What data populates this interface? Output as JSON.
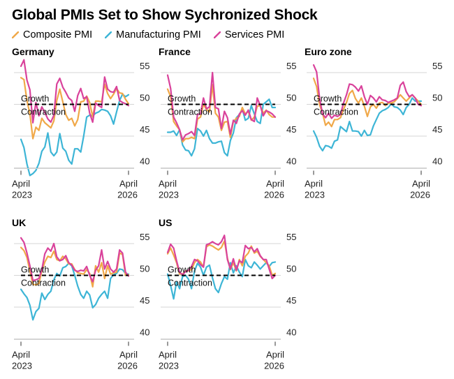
{
  "title": "Global PMIs Set to Show Sychronized Shock",
  "legend": [
    {
      "name": "Composite PMI",
      "color": "#f0a848"
    },
    {
      "name": "Manufacturing PMI",
      "color": "#3db5d6"
    },
    {
      "name": "Services PMI",
      "color": "#d9429b"
    }
  ],
  "chart_data": [
    {
      "type": "line",
      "title": "Germany",
      "x_start": "April 2023",
      "x_end": "April 2026",
      "x_ticks": [
        {
          "line1": "April",
          "line2": "2023"
        },
        {
          "line1": "April",
          "line2": "2026"
        }
      ],
      "y_ticks": [
        40,
        45,
        50,
        55
      ],
      "ylim": [
        39,
        57
      ],
      "reference_line": {
        "value": 50,
        "label_above": "Growth",
        "label_below": "Contraction"
      },
      "series": [
        {
          "name": "Composite PMI",
          "values": [
            54.2,
            53.9,
            50.6,
            48.5,
            44.6,
            46.4,
            45.9,
            47.8,
            47.1,
            46.7,
            46.3,
            47.4,
            50.6,
            52.4,
            50.4,
            48.4,
            47.5,
            47.8,
            46.6,
            47.6,
            50.4,
            50.5,
            51.3,
            50.3,
            48.0,
            50.5,
            50.5,
            50.4,
            53.2,
            51.7,
            50.9,
            51.6,
            52.5,
            51.8,
            51.7,
            50.8,
            50.1
          ]
        },
        {
          "name": "Manufacturing PMI",
          "values": [
            44.5,
            43.2,
            40.6,
            38.8,
            39.1,
            39.6,
            40.7,
            42.6,
            43.3,
            45.5,
            42.5,
            41.9,
            42.5,
            45.4,
            43.1,
            42.6,
            41.2,
            40.6,
            43.0,
            43.0,
            42.5,
            45.0,
            48.0,
            48.3,
            48.2,
            48.6,
            48.8,
            49.2,
            49.1,
            48.9,
            48.2,
            46.9,
            48.8,
            50.6,
            51.6,
            51.2,
            51.5
          ]
        },
        {
          "name": "Services PMI",
          "values": [
            56.0,
            57.0,
            53.8,
            52.3,
            47.1,
            50.3,
            48.2,
            49.6,
            48.7,
            47.7,
            47.2,
            48.3,
            53.2,
            54.1,
            52.7,
            51.9,
            51.0,
            50.6,
            48.9,
            51.4,
            52.5,
            50.9,
            51.2,
            48.6,
            47.2,
            50.2,
            49.8,
            49.5,
            54.3,
            52.4,
            52.0,
            51.9,
            52.8,
            50.6,
            50.3,
            50.1,
            49.8
          ]
        }
      ]
    },
    {
      "type": "line",
      "title": "France",
      "x_start": "April 2023",
      "x_end": "April 2026",
      "x_ticks": [
        {
          "line1": "April",
          "line2": "2023"
        },
        {
          "line1": "April",
          "line2": "2026"
        }
      ],
      "y_ticks": [
        40,
        45,
        50,
        55
      ],
      "ylim": [
        39,
        57
      ],
      "reference_line": {
        "value": 50,
        "label_above": "Growth",
        "label_below": "Contraction"
      },
      "series": [
        {
          "name": "Composite PMI",
          "values": [
            52.4,
            51.2,
            47.3,
            46.6,
            46.0,
            44.1,
            44.6,
            44.6,
            44.8,
            44.6,
            47.7,
            48.0,
            50.0,
            49.2,
            48.8,
            53.1,
            48.6,
            48.0,
            45.9,
            47.2,
            47.3,
            44.8,
            47.3,
            47.8,
            48.1,
            49.5,
            48.5,
            48.9,
            47.5,
            48.0,
            49.7,
            49.8,
            48.6,
            49.1,
            48.4,
            48.0,
            48.0
          ]
        },
        {
          "name": "Manufacturing PMI",
          "values": [
            45.6,
            45.6,
            45.8,
            45.1,
            46.0,
            43.6,
            42.8,
            42.7,
            41.9,
            43.0,
            46.2,
            45.8,
            45.0,
            45.9,
            44.6,
            43.9,
            43.9,
            44.1,
            44.2,
            42.4,
            41.9,
            44.3,
            45.5,
            47.9,
            48.4,
            49.3,
            47.5,
            47.8,
            49.8,
            48.5,
            47.3,
            47.0,
            50.0,
            50.4,
            50.8,
            49.5,
            49.5
          ]
        },
        {
          "name": "Services PMI",
          "values": [
            54.6,
            52.5,
            48.0,
            47.1,
            46.0,
            44.4,
            45.2,
            45.4,
            45.7,
            45.1,
            48.4,
            48.5,
            51.0,
            49.3,
            49.6,
            55.0,
            49.5,
            49.3,
            46.2,
            48.9,
            47.9,
            45.3,
            47.5,
            47.0,
            48.5,
            49.0,
            48.3,
            49.1,
            47.6,
            47.3,
            51.0,
            49.8,
            48.2,
            49.0,
            48.8,
            48.5,
            48.0
          ]
        }
      ]
    },
    {
      "type": "line",
      "title": "Euro zone",
      "x_start": "April 2023",
      "x_end": "April 2026",
      "x_ticks": [
        {
          "line1": "April",
          "line2": "2023"
        },
        {
          "line1": "April",
          "line2": "2026"
        }
      ],
      "y_ticks": [
        40,
        45,
        50,
        55
      ],
      "ylim": [
        39,
        57
      ],
      "reference_line": {
        "value": 50,
        "label_above": "Growth",
        "label_below": "Contraction"
      },
      "series": [
        {
          "name": "Composite PMI",
          "values": [
            54.1,
            52.8,
            49.9,
            48.6,
            46.7,
            47.2,
            46.5,
            47.6,
            47.6,
            47.9,
            49.2,
            50.3,
            51.7,
            52.2,
            50.9,
            50.2,
            51.0,
            49.7,
            48.1,
            49.6,
            50.0,
            49.4,
            50.2,
            50.3,
            49.8,
            50.2,
            50.2,
            50.4,
            50.9,
            51.5,
            51.0,
            50.5,
            51.0,
            51.5,
            51.0,
            50.5,
            50.0
          ]
        },
        {
          "name": "Manufacturing PMI",
          "values": [
            45.8,
            44.8,
            43.4,
            42.7,
            43.5,
            43.4,
            43.1,
            44.2,
            44.4,
            46.5,
            46.1,
            45.7,
            47.3,
            45.8,
            45.8,
            45.7,
            45.0,
            45.9,
            45.1,
            45.2,
            46.6,
            47.6,
            48.6,
            49.0,
            49.2,
            49.5,
            50.1,
            49.6,
            49.5,
            49.1,
            48.4,
            49.5,
            50.0,
            51.0,
            50.5,
            50.5,
            50.5
          ]
        },
        {
          "name": "Services PMI",
          "values": [
            56.2,
            55.1,
            50.9,
            48.5,
            47.9,
            48.6,
            47.8,
            48.3,
            48.1,
            48.4,
            50.2,
            51.5,
            53.2,
            53.1,
            52.7,
            52.1,
            52.9,
            51.2,
            50.0,
            51.4,
            51.0,
            50.4,
            51.2,
            50.7,
            50.6,
            50.3,
            50.5,
            50.7,
            51.0,
            53.0,
            53.5,
            52.0,
            51.2,
            51.5,
            51.0,
            50.0,
            49.8
          ]
        }
      ]
    },
    {
      "type": "line",
      "title": "UK",
      "x_start": "April 2023",
      "x_end": "April 2026",
      "x_ticks": [
        {
          "line1": "April",
          "line2": "2023"
        },
        {
          "line1": "April",
          "line2": "2026"
        }
      ],
      "y_ticks": [
        40,
        45,
        50,
        55
      ],
      "ylim": [
        39,
        57
      ],
      "reference_line": {
        "value": 50,
        "label_above": "Growth",
        "label_below": "Contraction"
      },
      "series": [
        {
          "name": "Composite PMI",
          "values": [
            54.4,
            53.9,
            52.8,
            50.7,
            48.6,
            48.5,
            48.7,
            50.7,
            52.1,
            53.0,
            52.8,
            53.8,
            52.5,
            52.3,
            53.0,
            52.6,
            51.8,
            51.8,
            50.9,
            50.4,
            50.3,
            50.2,
            50.9,
            50.3,
            48.2,
            51.5,
            50.5,
            52.0,
            49.5,
            51.5,
            50.2,
            50.4,
            50.5,
            53.5,
            53.3,
            50.0,
            50.1
          ]
        },
        {
          "name": "Manufacturing PMI",
          "values": [
            47.8,
            47.1,
            46.5,
            45.3,
            43.0,
            44.3,
            44.8,
            47.2,
            46.2,
            47.0,
            47.5,
            49.3,
            50.3,
            49.9,
            51.2,
            51.4,
            51.9,
            51.5,
            50.0,
            48.3,
            47.0,
            46.4,
            47.5,
            46.9,
            44.9,
            45.4,
            46.4,
            47.0,
            47.5,
            46.4,
            49.5,
            50.1,
            50.3,
            51.0,
            50.9,
            50.3,
            50.2
          ]
        },
        {
          "name": "Services PMI",
          "values": [
            55.9,
            55.2,
            53.5,
            51.5,
            49.2,
            49.3,
            49.5,
            50.9,
            53.4,
            54.3,
            53.8,
            55.0,
            52.9,
            52.3,
            52.5,
            53.1,
            52.0,
            51.6,
            50.8,
            50.6,
            50.8,
            50.7,
            51.4,
            50.0,
            49.0,
            50.8,
            51.5,
            54.0,
            51.0,
            52.2,
            51.0,
            50.5,
            51.0,
            54.0,
            53.5,
            50.5,
            49.9
          ]
        }
      ]
    },
    {
      "type": "line",
      "title": "US",
      "x_start": "April 2023",
      "x_end": "April 2026",
      "x_ticks": [
        {
          "line1": "April",
          "line2": "2023"
        },
        {
          "line1": "April",
          "line2": "2026"
        }
      ],
      "y_ticks": [
        40,
        45,
        50,
        55
      ],
      "ylim": [
        39,
        57
      ],
      "reference_line": {
        "value": 50,
        "label_above": "Growth",
        "label_below": "Contraction"
      },
      "series": [
        {
          "name": "Composite PMI",
          "values": [
            53.4,
            54.3,
            53.2,
            52.0,
            50.2,
            50.2,
            50.7,
            50.7,
            50.9,
            52.0,
            52.5,
            52.1,
            51.3,
            54.5,
            54.8,
            54.6,
            54.3,
            54.0,
            54.4,
            55.4,
            52.7,
            50.9,
            52.0,
            50.7,
            52.5,
            51.5,
            53.0,
            53.5,
            54.6,
            53.5,
            53.8,
            53.0,
            52.5,
            52.0,
            51.5,
            50.0,
            50.3
          ]
        },
        {
          "name": "Manufacturing PMI",
          "values": [
            50.2,
            48.4,
            46.3,
            49.0,
            47.9,
            49.8,
            50.0,
            49.4,
            47.9,
            50.7,
            51.9,
            51.3,
            50.0,
            51.3,
            51.6,
            49.6,
            47.9,
            47.3,
            48.7,
            49.8,
            49.4,
            52.0,
            50.4,
            51.5,
            50.5,
            49.8,
            52.5,
            51.5,
            51.2,
            52.1,
            51.6,
            51.0,
            51.5,
            52.0,
            51.4,
            52.0,
            52.1
          ]
        },
        {
          "name": "Services PMI",
          "values": [
            53.6,
            54.9,
            54.3,
            52.3,
            50.5,
            50.1,
            50.6,
            50.8,
            51.4,
            52.5,
            52.3,
            51.7,
            51.3,
            54.8,
            55.0,
            55.3,
            55.0,
            54.8,
            55.3,
            56.3,
            52.5,
            51.0,
            52.6,
            50.8,
            52.3,
            52.0,
            54.7,
            54.2,
            54.4,
            53.7,
            54.2,
            53.1,
            52.5,
            52.5,
            51.0,
            49.5,
            50.0
          ]
        }
      ]
    }
  ]
}
